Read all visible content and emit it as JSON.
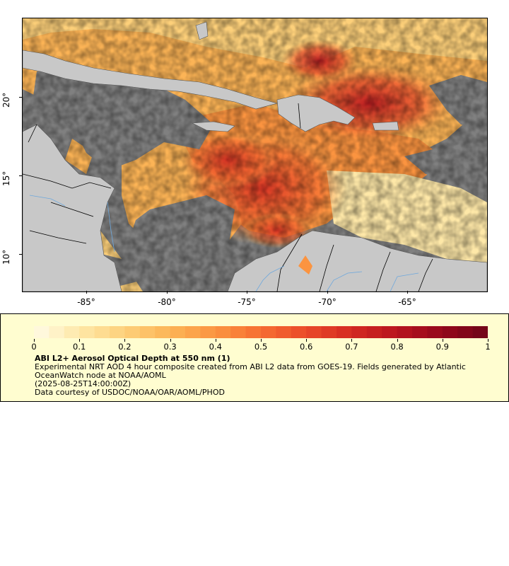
{
  "map": {
    "x_tick_labels": [
      "-85°",
      "-80°",
      "-75°",
      "-70°",
      "-65°"
    ],
    "y_tick_labels": [
      "20°",
      "15°",
      "10°"
    ],
    "colors": {
      "land": "#c8c8c8",
      "no_data": "#808080",
      "border": "#000000",
      "rivers": "#6fa8dc",
      "background": "#ffffff"
    }
  },
  "legend": {
    "colorbar_ticks": [
      "0",
      "0.1",
      "0.2",
      "0.3",
      "0.4",
      "0.5",
      "0.6",
      "0.7",
      "0.8",
      "0.9",
      "1"
    ],
    "colorbar_stops": [
      "#fffbe6",
      "#fee8a8",
      "#fdd07a",
      "#fcb456",
      "#fb9440",
      "#f66e32",
      "#ea4a2a",
      "#d42a22",
      "#b8141e",
      "#94081c",
      "#6f0418"
    ],
    "title": "ABI L2+ Aerosol Optical Depth at 550 nm (1)",
    "description": "Experimental NRT AOD 4 hour composite created from ABI L2 data from GOES-19. Fields generated by Atlantic OceanWatch node at NOAA/AOML",
    "timestamp": "(2025-08-25T14:00:00Z)",
    "credit": "Data courtesy of USDOC/NOAA/OAR/AOML/PHOD",
    "background_color": "#fffdd0"
  }
}
